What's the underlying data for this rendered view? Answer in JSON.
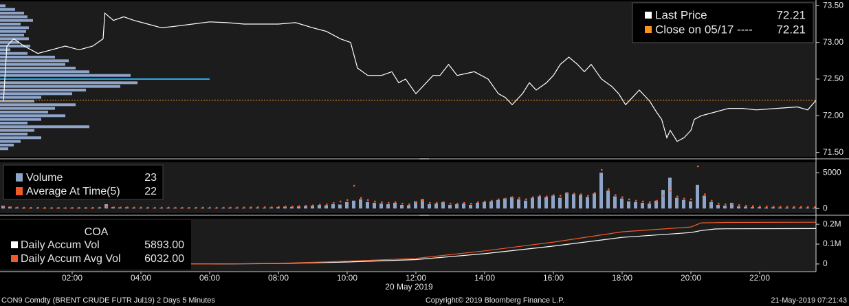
{
  "chart_data": [
    {
      "type": "line",
      "ylim": [
        71.44,
        73.56
      ],
      "yticks": [
        {
          "value": 73.5,
          "label": "73.50"
        },
        {
          "value": 73,
          "label": "73.00"
        },
        {
          "value": 72.5,
          "label": "72.50"
        },
        {
          "value": 72,
          "label": "72.00"
        },
        {
          "value": 71.5,
          "label": "71.50"
        }
      ],
      "series": [
        {
          "name": "Last Price",
          "color": "#ffffff",
          "last": 72.21,
          "x": [
            0,
            0.1,
            0.3,
            0.6,
            1,
            1.4,
            1.8,
            2.2,
            2.6,
            2.9,
            2.95,
            3.2,
            3.5,
            3.8,
            4.2,
            4.6,
            5,
            5.5,
            6,
            6.5,
            7,
            7.5,
            8,
            8.5,
            9,
            9.4,
            9.8,
            10.1,
            10.3,
            10.6,
            11,
            11.3,
            11.5,
            11.7,
            12,
            12.3,
            12.5,
            12.7,
            12.95,
            13.2,
            13.7,
            14.1,
            14.4,
            14.6,
            14.8,
            15.1,
            15.3,
            15.5,
            15.8,
            16,
            16.2,
            16.45,
            16.7,
            16.9,
            17.1,
            17.4,
            17.7,
            17.9,
            18.1,
            18.3,
            18.5,
            18.8,
            19,
            19.15,
            19.3,
            19.4,
            19.6,
            19.8,
            20,
            20.1,
            20.3,
            20.7,
            21.1,
            21.5,
            21.9,
            22.5,
            23.1,
            23.4,
            23.64
          ],
          "values": [
            72.2,
            72.95,
            73.05,
            72.95,
            72.85,
            72.9,
            72.95,
            72.9,
            72.95,
            73.05,
            73.4,
            73.3,
            73.35,
            73.3,
            73.25,
            73.2,
            73.22,
            73.25,
            73.28,
            73.27,
            73.25,
            73.25,
            73.25,
            73.27,
            73.2,
            73.15,
            73.05,
            73.0,
            72.65,
            72.55,
            72.55,
            72.6,
            72.45,
            72.5,
            72.3,
            72.45,
            72.55,
            72.55,
            72.7,
            72.55,
            72.6,
            72.5,
            72.3,
            72.25,
            72.15,
            72.3,
            72.45,
            72.35,
            72.45,
            72.55,
            72.7,
            72.8,
            72.7,
            72.6,
            72.7,
            72.5,
            72.4,
            72.3,
            72.15,
            72.25,
            72.35,
            72.2,
            72.05,
            71.95,
            71.7,
            71.8,
            71.65,
            71.7,
            71.8,
            71.95,
            72.0,
            72.05,
            72.1,
            72.1,
            72.08,
            72.1,
            72.12,
            72.08,
            72.21
          ]
        }
      ],
      "reference": {
        "name": "Close on 05/17 ----",
        "value": 72.21,
        "color": "#f7931e"
      },
      "profile": {
        "color": "#8ea4c8",
        "highlight_color": "#29a9e0",
        "highlight": 72.5,
        "levels": [
          73.5,
          73.45,
          73.4,
          73.35,
          73.3,
          73.25,
          73.2,
          73.15,
          73.1,
          73.05,
          73,
          72.95,
          72.9,
          72.85,
          72.8,
          72.75,
          72.7,
          72.65,
          72.6,
          72.55,
          72.5,
          72.45,
          72.4,
          72.35,
          72.3,
          72.25,
          72.2,
          72.15,
          72.1,
          72.05,
          72,
          71.95,
          71.9,
          71.85,
          71.8,
          71.75,
          71.7,
          71.65,
          71.6,
          71.55
        ],
        "values": [
          8,
          22,
          35,
          40,
          48,
          30,
          42,
          38,
          35,
          42,
          28,
          44,
          15,
          40,
          80,
          100,
          95,
          110,
          130,
          190,
          305,
          200,
          175,
          125,
          105,
          60,
          50,
          110,
          80,
          70,
          95,
          60,
          40,
          130,
          50,
          40,
          60,
          30,
          20,
          12
        ]
      }
    },
    {
      "type": "bar",
      "ylim": [
        -650,
        6450
      ],
      "yticks": [
        5000,
        0
      ],
      "x": [
        0,
        0.2,
        0.4,
        0.6,
        0.8,
        1,
        1.2,
        1.4,
        1.6,
        1.8,
        2,
        2.2,
        2.4,
        2.6,
        2.8,
        3,
        3.2,
        3.4,
        3.6,
        3.8,
        4,
        4.2,
        4.4,
        4.6,
        4.8,
        5,
        5.2,
        5.4,
        5.6,
        5.8,
        6,
        6.2,
        6.4,
        6.6,
        6.8,
        7,
        7.2,
        7.4,
        7.6,
        7.8,
        8,
        8.2,
        8.4,
        8.6,
        8.8,
        9,
        9.2,
        9.4,
        9.6,
        9.8,
        10,
        10.2,
        10.4,
        10.6,
        10.8,
        11,
        11.2,
        11.4,
        11.6,
        11.8,
        12,
        12.2,
        12.4,
        12.6,
        12.8,
        13,
        13.2,
        13.4,
        13.6,
        13.8,
        14,
        14.2,
        14.4,
        14.6,
        14.8,
        15,
        15.2,
        15.4,
        15.6,
        15.8,
        16,
        16.2,
        16.4,
        16.6,
        16.8,
        17,
        17.2,
        17.4,
        17.6,
        17.8,
        18,
        18.2,
        18.4,
        18.6,
        18.8,
        19,
        19.2,
        19.4,
        19.6,
        19.8,
        20,
        20.2,
        20.4,
        20.6,
        20.8,
        21,
        21.2,
        21.4,
        21.6,
        21.8,
        22,
        22.2,
        22.4,
        22.6,
        22.8,
        23,
        23.2,
        23.4,
        23.6
      ],
      "series": [
        {
          "name": "Volume",
          "color": "#8ea4c8",
          "style": "bar",
          "last": 23,
          "values": [
            400,
            250,
            150,
            120,
            100,
            80,
            90,
            70,
            100,
            80,
            90,
            120,
            100,
            110,
            150,
            600,
            200,
            150,
            180,
            120,
            100,
            120,
            90,
            110,
            130,
            100,
            90,
            80,
            100,
            120,
            110,
            90,
            100,
            130,
            120,
            110,
            140,
            150,
            130,
            160,
            200,
            250,
            220,
            300,
            350,
            400,
            500,
            450,
            600,
            550,
            900,
            1100,
            1300,
            900,
            800,
            700,
            600,
            800,
            500,
            450,
            1000,
            1300,
            600,
            700,
            900,
            500,
            600,
            700,
            500,
            800,
            900,
            1000,
            1200,
            1400,
            1600,
            1300,
            1100,
            1500,
            1700,
            1600,
            1800,
            1500,
            2200,
            2000,
            1900,
            1600,
            2100,
            5000,
            2500,
            1700,
            1400,
            1000,
            900,
            800,
            700,
            1100,
            2600,
            4300,
            1500,
            1200,
            1000,
            3300,
            1800,
            900,
            500,
            400,
            800,
            300,
            250,
            200,
            200,
            150,
            180,
            150,
            120,
            130,
            150,
            140,
            120
          ]
        },
        {
          "name": "Average At Time(5)",
          "color": "#f05a28",
          "style": "point",
          "last": 22,
          "values": [
            300,
            200,
            150,
            130,
            120,
            120,
            110,
            100,
            110,
            100,
            110,
            120,
            110,
            120,
            140,
            300,
            180,
            160,
            170,
            150,
            150,
            140,
            130,
            140,
            150,
            130,
            120,
            120,
            130,
            140,
            140,
            130,
            140,
            150,
            150,
            160,
            170,
            180,
            190,
            200,
            250,
            300,
            300,
            350,
            400,
            450,
            550,
            600,
            800,
            1000,
            1200,
            3200,
            1500,
            1200,
            1000,
            900,
            800,
            900,
            700,
            600,
            900,
            1100,
            800,
            800,
            900,
            700,
            700,
            800,
            700,
            900,
            1000,
            1100,
            1300,
            1400,
            1600,
            1500,
            1300,
            1600,
            1800,
            1700,
            1900,
            1800,
            2200,
            2100,
            2000,
            1800,
            2200,
            5400,
            2700,
            1900,
            1600,
            1300,
            1100,
            1000,
            900,
            1100,
            1800,
            2500,
            1700,
            1400,
            1300,
            5900,
            2000,
            1100,
            700,
            600,
            700,
            500,
            400,
            350,
            300,
            300,
            280,
            260,
            250,
            240,
            230,
            220,
            200
          ]
        }
      ]
    },
    {
      "type": "line",
      "title": "COA",
      "ylim": [
        -35000,
        228000
      ],
      "yticks": [
        {
          "value": 200000,
          "label": "0.2M"
        },
        {
          "value": 100000,
          "label": "0.1M"
        },
        0
      ],
      "x": [
        0,
        6,
        8,
        10,
        12,
        14,
        16,
        18,
        20,
        20.3,
        20.7,
        21,
        23.64
      ],
      "series": [
        {
          "name": "Daily Accum Vol",
          "color": "#ffffff",
          "last": {
            "value": 5893,
            "label": "5893.00"
          },
          "values": [
            0,
            0,
            2000,
            10000,
            22000,
            52000,
            90000,
            134000,
            158000,
            168000,
            176000,
            177000,
            178000
          ]
        },
        {
          "name": "Daily Accum Avg Vol",
          "color": "#f05a28",
          "last": {
            "value": 6032,
            "label": "6032.00"
          },
          "values": [
            0,
            0,
            3000,
            14000,
            28000,
            66000,
            110000,
            162000,
            186000,
            207000,
            208000,
            209000,
            210000
          ]
        }
      ]
    }
  ],
  "time_axis": {
    "xlim": [
      -0.1,
      23.64
    ],
    "date_label": "20 May 2019",
    "xticks": [
      {
        "value": 2,
        "label": "02:00"
      },
      {
        "value": 4,
        "label": "04:00"
      },
      {
        "value": 6,
        "label": "06:00"
      },
      {
        "value": 8,
        "label": "08:00"
      },
      {
        "value": 10,
        "label": "10:00"
      },
      {
        "value": 12,
        "label": "12:00"
      },
      {
        "value": 14,
        "label": "14:00"
      },
      {
        "value": 16,
        "label": "16:00"
      },
      {
        "value": 18,
        "label": "18:00"
      },
      {
        "value": 20,
        "label": "20:00"
      },
      {
        "value": 22,
        "label": "22:00"
      }
    ]
  },
  "footer": {
    "left": "CON9 Comdty (BRENT CRUDE FUTR  Jul19) 2 Days 5 Minutes",
    "center": "Copyright© 2019 Bloomberg Finance L.P.",
    "right": "21-May-2019 07:21:43"
  }
}
